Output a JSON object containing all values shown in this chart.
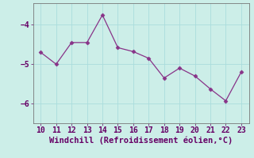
{
  "x": [
    10,
    11,
    12,
    13,
    14,
    15,
    16,
    17,
    18,
    19,
    20,
    21,
    22,
    23
  ],
  "y": [
    -4.7,
    -5.0,
    -4.45,
    -4.45,
    -3.75,
    -4.58,
    -4.68,
    -4.85,
    -5.35,
    -5.1,
    -5.3,
    -5.63,
    -5.93,
    -5.2
  ],
  "line_color": "#883388",
  "marker": "D",
  "marker_size": 2.5,
  "bg_color": "#cceee8",
  "grid_color": "#aadddd",
  "xlabel": "Windchill (Refroidissement éolien,°C)",
  "xlabel_color": "#660066",
  "xlabel_fontsize": 7.5,
  "tick_color": "#660066",
  "tick_fontsize": 7,
  "ylim": [
    -6.5,
    -3.45
  ],
  "xlim": [
    9.5,
    23.5
  ],
  "yticks": [
    -6,
    -5,
    -4
  ],
  "xticks": [
    10,
    11,
    12,
    13,
    14,
    15,
    16,
    17,
    18,
    19,
    20,
    21,
    22,
    23
  ]
}
